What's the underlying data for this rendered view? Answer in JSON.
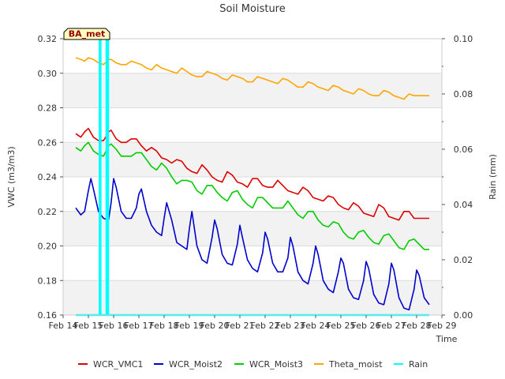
{
  "chart_data": {
    "type": "line",
    "title": "Soil Moisture",
    "site_label": "BA_met",
    "xlabel": "Time",
    "ylabel": "VWC (m3/m3)",
    "ylabel_right": "Rain (mm)",
    "xlim": [
      14,
      29
    ],
    "ylim": [
      0.16,
      0.32
    ],
    "ylim_right": [
      0.0,
      0.1
    ],
    "x_tick_labels": [
      "Feb 14",
      "Feb 15",
      "Feb 16",
      "Feb 17",
      "Feb 18",
      "Feb 19",
      "Feb 20",
      "Feb 21",
      "Feb 22",
      "Feb 23",
      "Feb 24",
      "Feb 25",
      "Feb 26",
      "Feb 27",
      "Feb 28",
      "Feb 29"
    ],
    "y_tick_labels": [
      "0.16",
      "0.18",
      "0.20",
      "0.22",
      "0.24",
      "0.26",
      "0.28",
      "0.30",
      "0.32"
    ],
    "y_right_tick_labels": [
      "0.00",
      "0.02",
      "0.04",
      "0.06",
      "0.08",
      "0.10"
    ],
    "grid": "horizontal bands",
    "legend_position": "bottom",
    "series": [
      {
        "name": "WCR_VMC1",
        "color": "#dd0000",
        "axis": "left",
        "x": [
          14.5,
          14.7,
          14.85,
          15.0,
          15.2,
          15.4,
          15.6,
          15.8,
          15.9,
          16.1,
          16.3,
          16.5,
          16.7,
          16.9,
          17.1,
          17.3,
          17.5,
          17.7,
          17.9,
          18.1,
          18.3,
          18.5,
          18.7,
          18.9,
          19.1,
          19.3,
          19.5,
          19.7,
          19.9,
          20.1,
          20.3,
          20.5,
          20.7,
          20.9,
          21.1,
          21.3,
          21.5,
          21.7,
          21.9,
          22.1,
          22.3,
          22.5,
          22.7,
          22.9,
          23.1,
          23.3,
          23.5,
          23.7,
          23.9,
          24.1,
          24.3,
          24.5,
          24.7,
          24.9,
          25.1,
          25.3,
          25.5,
          25.7,
          25.9,
          26.1,
          26.3,
          26.5,
          26.7,
          26.9,
          27.1,
          27.3,
          27.5,
          27.7,
          27.9,
          28.1,
          28.3,
          28.5
        ],
        "y": [
          0.265,
          0.263,
          0.266,
          0.268,
          0.263,
          0.261,
          0.261,
          0.266,
          0.267,
          0.262,
          0.26,
          0.26,
          0.262,
          0.262,
          0.258,
          0.255,
          0.257,
          0.255,
          0.251,
          0.25,
          0.248,
          0.25,
          0.249,
          0.245,
          0.243,
          0.242,
          0.247,
          0.244,
          0.24,
          0.238,
          0.237,
          0.243,
          0.241,
          0.237,
          0.236,
          0.234,
          0.239,
          0.239,
          0.235,
          0.234,
          0.234,
          0.238,
          0.235,
          0.232,
          0.231,
          0.23,
          0.234,
          0.232,
          0.228,
          0.227,
          0.226,
          0.229,
          0.228,
          0.224,
          0.222,
          0.221,
          0.225,
          0.223,
          0.219,
          0.218,
          0.217,
          0.224,
          0.222,
          0.217,
          0.216,
          0.215,
          0.22,
          0.22,
          0.216,
          0.216,
          0.216,
          0.216
        ]
      },
      {
        "name": "WCR_Moist2",
        "color": "#0000cc",
        "axis": "left",
        "x": [
          14.5,
          14.7,
          14.85,
          15.0,
          15.1,
          15.2,
          15.4,
          15.6,
          15.8,
          15.9,
          16.0,
          16.1,
          16.3,
          16.5,
          16.7,
          16.9,
          17.0,
          17.1,
          17.3,
          17.5,
          17.7,
          17.9,
          18.0,
          18.1,
          18.3,
          18.5,
          18.7,
          18.9,
          19.0,
          19.1,
          19.3,
          19.5,
          19.7,
          19.9,
          20.0,
          20.1,
          20.3,
          20.5,
          20.7,
          20.9,
          21.0,
          21.1,
          21.3,
          21.5,
          21.7,
          21.9,
          22.0,
          22.1,
          22.3,
          22.5,
          22.7,
          22.9,
          23.0,
          23.1,
          23.3,
          23.5,
          23.7,
          23.9,
          24.0,
          24.1,
          24.3,
          24.5,
          24.7,
          24.9,
          25.0,
          25.1,
          25.3,
          25.5,
          25.7,
          25.9,
          26.0,
          26.1,
          26.3,
          26.5,
          26.7,
          26.9,
          27.0,
          27.1,
          27.3,
          27.5,
          27.7,
          27.9,
          28.0,
          28.1,
          28.3,
          28.5
        ],
        "y": [
          0.222,
          0.218,
          0.22,
          0.232,
          0.239,
          0.233,
          0.22,
          0.216,
          0.215,
          0.225,
          0.239,
          0.234,
          0.22,
          0.216,
          0.216,
          0.222,
          0.23,
          0.233,
          0.22,
          0.212,
          0.208,
          0.206,
          0.216,
          0.225,
          0.215,
          0.202,
          0.2,
          0.198,
          0.21,
          0.22,
          0.2,
          0.192,
          0.19,
          0.205,
          0.215,
          0.21,
          0.195,
          0.19,
          0.189,
          0.201,
          0.212,
          0.205,
          0.192,
          0.187,
          0.185,
          0.196,
          0.208,
          0.204,
          0.19,
          0.185,
          0.185,
          0.193,
          0.205,
          0.2,
          0.185,
          0.18,
          0.178,
          0.19,
          0.2,
          0.195,
          0.18,
          0.175,
          0.173,
          0.185,
          0.193,
          0.19,
          0.175,
          0.17,
          0.169,
          0.18,
          0.191,
          0.187,
          0.172,
          0.167,
          0.166,
          0.178,
          0.19,
          0.186,
          0.17,
          0.164,
          0.163,
          0.175,
          0.186,
          0.183,
          0.17,
          0.166
        ]
      },
      {
        "name": "WCR_Moist3",
        "color": "#00cc00",
        "axis": "left",
        "x": [
          14.5,
          14.7,
          14.85,
          15.0,
          15.2,
          15.4,
          15.6,
          15.8,
          15.9,
          16.1,
          16.3,
          16.5,
          16.7,
          16.9,
          17.1,
          17.3,
          17.5,
          17.7,
          17.9,
          18.1,
          18.3,
          18.5,
          18.7,
          18.9,
          19.1,
          19.3,
          19.5,
          19.7,
          19.9,
          20.1,
          20.3,
          20.5,
          20.7,
          20.9,
          21.1,
          21.3,
          21.5,
          21.7,
          21.9,
          22.1,
          22.3,
          22.5,
          22.7,
          22.9,
          23.1,
          23.3,
          23.5,
          23.7,
          23.9,
          24.1,
          24.3,
          24.5,
          24.7,
          24.9,
          25.1,
          25.3,
          25.5,
          25.7,
          25.9,
          26.1,
          26.3,
          26.5,
          26.7,
          26.9,
          27.1,
          27.3,
          27.5,
          27.7,
          27.9,
          28.1,
          28.3,
          28.5
        ],
        "y": [
          0.257,
          0.255,
          0.258,
          0.26,
          0.255,
          0.253,
          0.252,
          0.258,
          0.259,
          0.256,
          0.252,
          0.252,
          0.252,
          0.254,
          0.254,
          0.25,
          0.246,
          0.244,
          0.248,
          0.245,
          0.24,
          0.236,
          0.238,
          0.238,
          0.237,
          0.232,
          0.23,
          0.235,
          0.235,
          0.231,
          0.228,
          0.226,
          0.231,
          0.232,
          0.227,
          0.224,
          0.222,
          0.228,
          0.228,
          0.225,
          0.222,
          0.222,
          0.222,
          0.226,
          0.222,
          0.218,
          0.216,
          0.22,
          0.22,
          0.215,
          0.212,
          0.211,
          0.214,
          0.213,
          0.208,
          0.205,
          0.204,
          0.208,
          0.209,
          0.205,
          0.202,
          0.201,
          0.206,
          0.207,
          0.203,
          0.199,
          0.198,
          0.203,
          0.204,
          0.201,
          0.198,
          0.198
        ]
      },
      {
        "name": "Theta_moist",
        "color": "#ffa500",
        "axis": "left",
        "x": [
          14.5,
          14.7,
          14.85,
          15.0,
          15.2,
          15.4,
          15.6,
          15.8,
          15.9,
          16.1,
          16.3,
          16.5,
          16.7,
          16.9,
          17.1,
          17.3,
          17.5,
          17.7,
          17.9,
          18.1,
          18.3,
          18.5,
          18.7,
          18.9,
          19.1,
          19.3,
          19.5,
          19.7,
          19.9,
          20.1,
          20.3,
          20.5,
          20.7,
          20.9,
          21.1,
          21.3,
          21.5,
          21.7,
          21.9,
          22.1,
          22.3,
          22.5,
          22.7,
          22.9,
          23.1,
          23.3,
          23.5,
          23.7,
          23.9,
          24.1,
          24.3,
          24.5,
          24.7,
          24.9,
          25.1,
          25.3,
          25.5,
          25.7,
          25.9,
          26.1,
          26.3,
          26.5,
          26.7,
          26.9,
          27.1,
          27.3,
          27.5,
          27.7,
          27.9,
          28.1,
          28.3,
          28.5
        ],
        "y": [
          0.309,
          0.308,
          0.307,
          0.309,
          0.308,
          0.306,
          0.305,
          0.308,
          0.308,
          0.306,
          0.305,
          0.305,
          0.307,
          0.306,
          0.305,
          0.303,
          0.302,
          0.305,
          0.303,
          0.302,
          0.301,
          0.3,
          0.303,
          0.301,
          0.299,
          0.298,
          0.298,
          0.301,
          0.3,
          0.299,
          0.297,
          0.296,
          0.299,
          0.298,
          0.297,
          0.295,
          0.295,
          0.298,
          0.297,
          0.296,
          0.295,
          0.294,
          0.297,
          0.296,
          0.294,
          0.292,
          0.292,
          0.295,
          0.294,
          0.292,
          0.291,
          0.29,
          0.293,
          0.292,
          0.29,
          0.289,
          0.288,
          0.291,
          0.29,
          0.288,
          0.287,
          0.287,
          0.29,
          0.289,
          0.287,
          0.286,
          0.285,
          0.288,
          0.287,
          0.287,
          0.287,
          0.287
        ]
      },
      {
        "name": "Rain",
        "color": "#00ffff",
        "axis": "right",
        "style": "step",
        "x": [
          14.5,
          15.45,
          15.45,
          15.48,
          15.48,
          15.72,
          15.72,
          15.78,
          15.78,
          28.5
        ],
        "y": [
          0.0,
          0.0,
          0.1,
          0.1,
          0.0,
          0.0,
          0.1,
          0.1,
          0.0,
          0.0
        ]
      }
    ]
  }
}
